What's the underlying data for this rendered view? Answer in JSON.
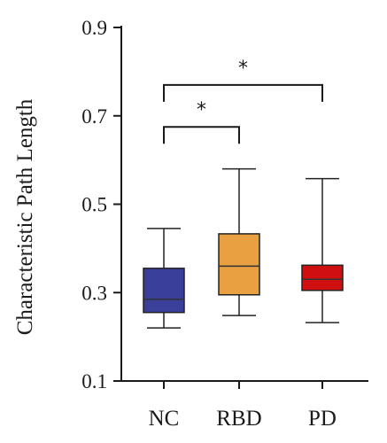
{
  "chart_data": {
    "type": "box",
    "ylabel": "Characteristic Path Length",
    "xlabel": "",
    "title": "",
    "ylim": [
      0.1,
      0.9
    ],
    "yticks": [
      "0.1",
      "0.3",
      "0.5",
      "0.7",
      "0.9"
    ],
    "categories": [
      "NC",
      "RBD",
      "PD"
    ],
    "boxes": [
      {
        "category": "NC",
        "min": 0.22,
        "q1": 0.255,
        "median": 0.285,
        "q3": 0.355,
        "max": 0.445,
        "color": "#3a3f9a"
      },
      {
        "category": "RBD",
        "min": 0.248,
        "q1": 0.295,
        "median": 0.36,
        "q3": 0.433,
        "max": 0.58,
        "color": "#e8a040"
      },
      {
        "category": "PD",
        "min": 0.232,
        "q1": 0.305,
        "median": 0.33,
        "q3": 0.362,
        "max": 0.558,
        "color": "#d01010"
      }
    ],
    "significance": [
      {
        "from": "NC",
        "to": "RBD",
        "label": "*",
        "y": 0.675
      },
      {
        "from": "NC",
        "to": "PD",
        "label": "*",
        "y": 0.77
      }
    ],
    "grid": false,
    "legend": "none"
  }
}
